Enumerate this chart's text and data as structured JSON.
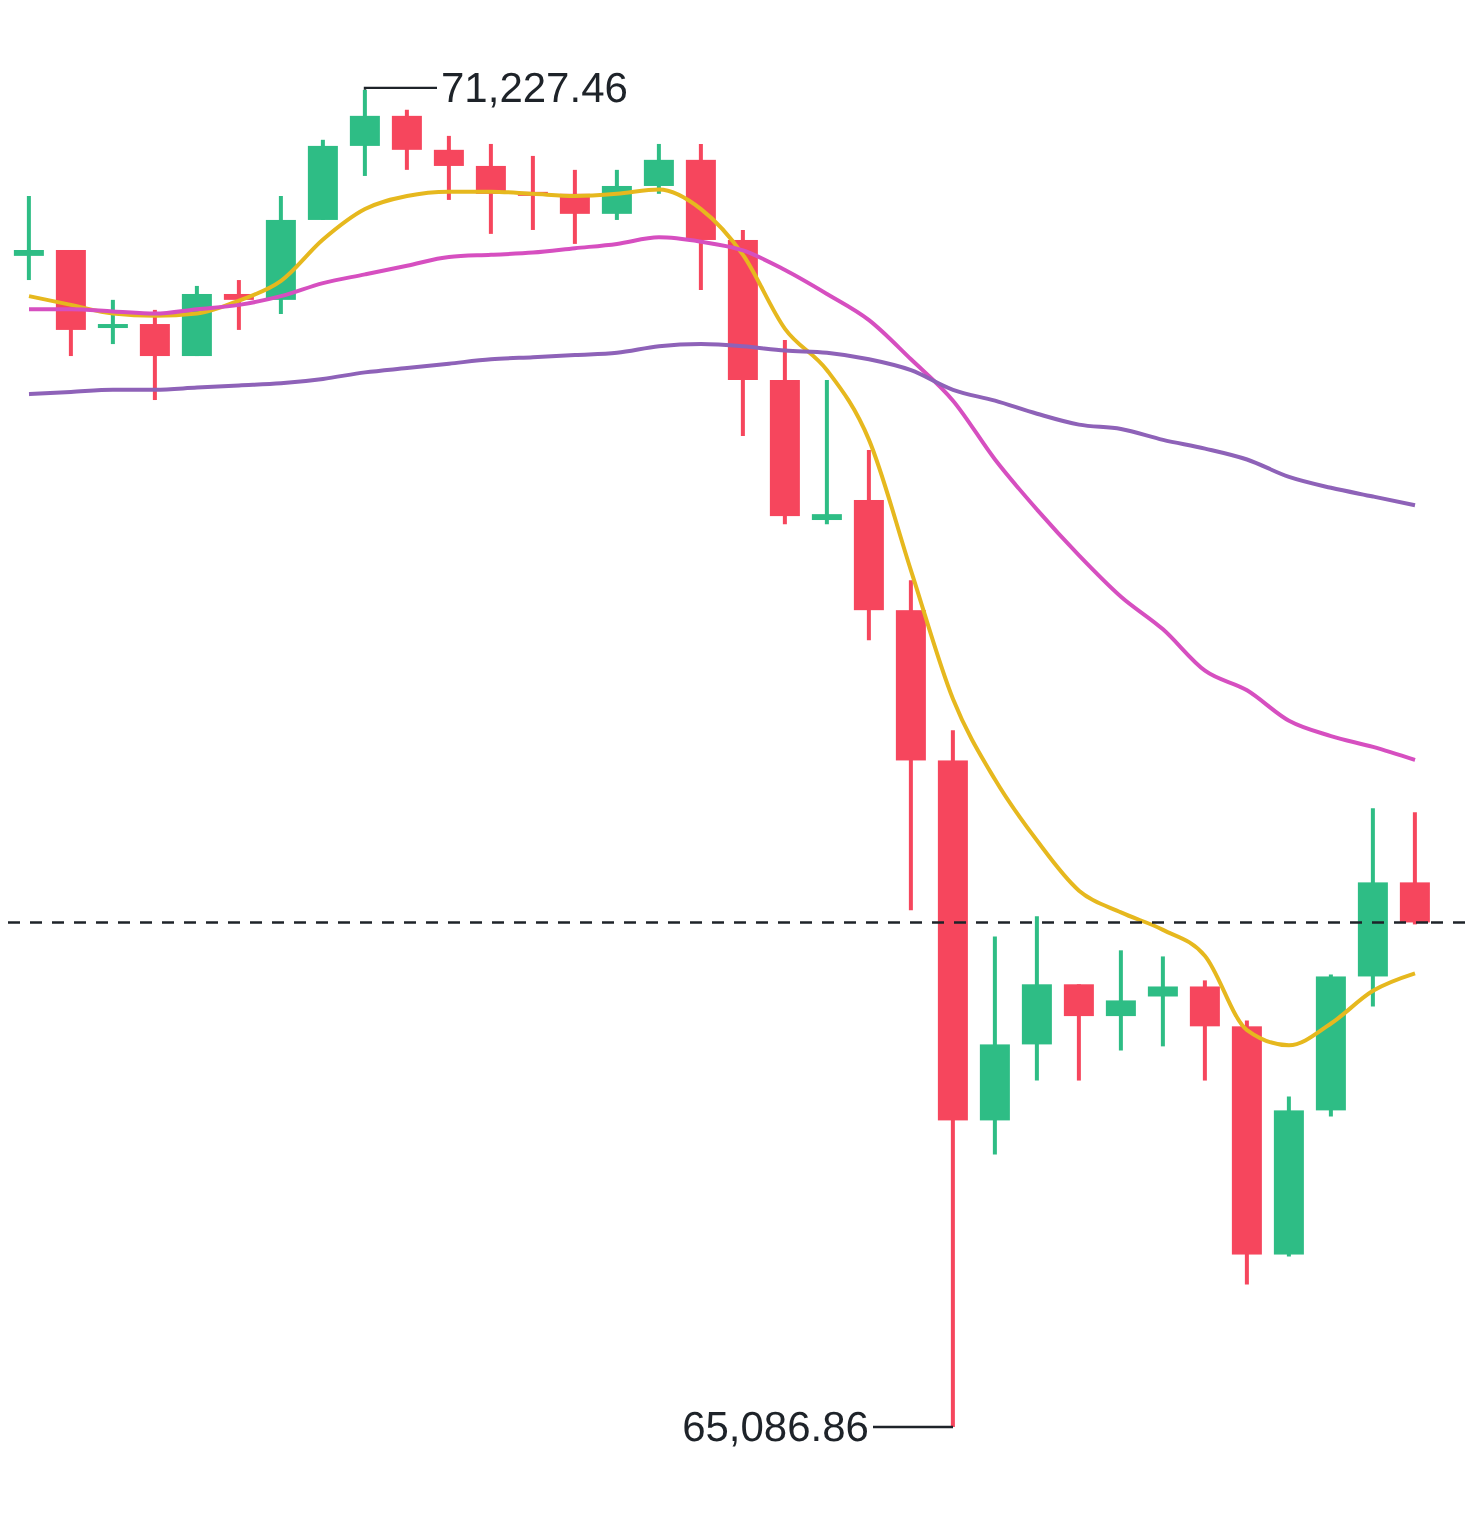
{
  "chart_data": {
    "type": "candlestick",
    "categories": [
      null,
      null,
      null,
      null,
      null,
      null,
      null,
      null,
      null,
      null,
      null,
      null,
      null,
      null,
      null,
      null,
      null,
      null,
      null,
      null,
      null,
      null,
      null,
      null,
      null,
      null,
      null,
      null,
      null,
      null,
      null,
      null,
      null,
      null
    ],
    "ohlc": [
      [
        70465,
        70740,
        70354,
        70492
      ],
      [
        70492,
        70492,
        70005,
        70125
      ],
      [
        70134,
        70263,
        70060,
        70152
      ],
      [
        70152,
        70217,
        69803,
        70005
      ],
      [
        70005,
        70327,
        70005,
        70290
      ],
      [
        70290,
        70354,
        70125,
        70263
      ],
      [
        70263,
        70740,
        70198,
        70630
      ],
      [
        70630,
        70998,
        70630,
        70970
      ],
      [
        70970,
        71227.46,
        70832,
        71108
      ],
      [
        71108,
        71136,
        70860,
        70952
      ],
      [
        70952,
        71016,
        70722,
        70878
      ],
      [
        70878,
        70979,
        70566,
        70750
      ],
      [
        70759,
        70924,
        70584,
        70750
      ],
      [
        70750,
        70860,
        70520,
        70658
      ],
      [
        70658,
        70860,
        70630,
        70786
      ],
      [
        70786,
        70979,
        70750,
        70906
      ],
      [
        70906,
        70979,
        70308,
        70538
      ],
      [
        70538,
        70584,
        69638,
        69895
      ],
      [
        69895,
        70079,
        69233,
        69270
      ],
      [
        69252,
        69895,
        69233,
        69279
      ],
      [
        69344,
        69574,
        68700,
        68838
      ],
      [
        68838,
        68976,
        67460,
        68148
      ],
      [
        68148,
        68287,
        65086.86,
        66495
      ],
      [
        66495,
        67340,
        66338,
        66844
      ],
      [
        66844,
        67432,
        66678,
        67120
      ],
      [
        67120,
        67120,
        66678,
        66974
      ],
      [
        66974,
        67276,
        66816,
        67046
      ],
      [
        67064,
        67248,
        66835,
        67110
      ],
      [
        67110,
        67138,
        66678,
        66927
      ],
      [
        66927,
        66954,
        65741,
        65879
      ],
      [
        65879,
        66605,
        65870,
        66541
      ],
      [
        66541,
        67165,
        66513,
        67156
      ],
      [
        67156,
        67928,
        67018,
        67588
      ],
      [
        67588,
        67910,
        67395,
        67404
      ]
    ],
    "colors": [
      "#2ebd85",
      "#f6465d",
      "#2ebd85",
      "#f6465d",
      "#2ebd85",
      "#f6465d",
      "#2ebd85",
      "#2ebd85",
      "#2ebd85",
      "#f6465d",
      "#f6465d",
      "#f6465d",
      "#f6465d",
      "#f6465d",
      "#2ebd85",
      "#2ebd85",
      "#f6465d",
      "#f6465d",
      "#f6465d",
      "#2ebd85",
      "#f6465d",
      "#f6465d",
      "#f6465d",
      "#2ebd85",
      "#2ebd85",
      "#f6465d",
      "#2ebd85",
      "#2ebd85",
      "#f6465d",
      "#f6465d",
      "#2ebd85",
      "#2ebd85",
      "#2ebd85",
      "#f6465d"
    ],
    "series": [
      {
        "type": "line",
        "color": "#e6b81e",
        "values": [
          70280,
          70240,
          70200,
          70190,
          70200,
          70260,
          70350,
          70540,
          70680,
          70740,
          70760,
          70760,
          70750,
          70740,
          70750,
          70770,
          70680,
          70470,
          70130,
          69940,
          69620,
          69020,
          68430,
          68060,
          67780,
          67550,
          67450,
          67370,
          67250,
          66910,
          66840,
          66940,
          67090,
          67170
        ]
      },
      {
        "type": "line",
        "color": "#d64fc0",
        "values": [
          70220,
          70220,
          70210,
          70200,
          70220,
          70240,
          70280,
          70340,
          70380,
          70420,
          70460,
          70470,
          70480,
          70500,
          70520,
          70550,
          70530,
          70490,
          70400,
          70290,
          70170,
          69990,
          69800,
          69530,
          69300,
          69090,
          68900,
          68750,
          68560,
          68470,
          68330,
          68260,
          68210,
          68150
        ]
      },
      {
        "type": "line",
        "color": "#8e62b8",
        "values": [
          69830,
          69840,
          69850,
          69850,
          69860,
          69870,
          69880,
          69900,
          69930,
          69950,
          69970,
          69990,
          70000,
          70010,
          70020,
          70050,
          70060,
          70050,
          70030,
          70020,
          69990,
          69940,
          69850,
          69800,
          69740,
          69690,
          69670,
          69620,
          69580,
          69530,
          69450,
          69400,
          69360,
          69320
        ]
      }
    ],
    "ylim": [
      64660,
      71640
    ],
    "ref_lines": [
      {
        "axis": "y",
        "value": 67404,
        "color": "#1e2329",
        "line_style": "dashed"
      }
    ],
    "annotations": [
      "71,227.46",
      "65,086.86"
    ]
  }
}
